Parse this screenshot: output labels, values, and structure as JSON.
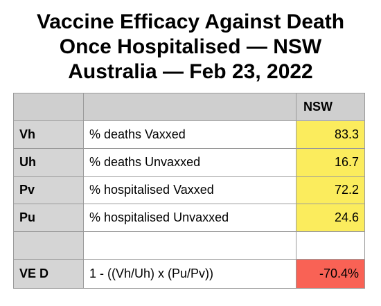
{
  "title_lines": [
    "Vaccine Efficacy Against Death",
    "Once Hospitalised — NSW",
    "Australia — Feb 23, 2022"
  ],
  "chart_data": {
    "type": "table",
    "title": "Vaccine Efficacy Against Death Once Hospitalised — NSW Australia — Feb 23, 2022",
    "column_headers": [
      "",
      "",
      "NSW"
    ],
    "rows": [
      {
        "symbol": "Vh",
        "label": "% deaths Vaxxed",
        "value": "83.3"
      },
      {
        "symbol": "Uh",
        "label": "% deaths Unvaxxed",
        "value": "16.7"
      },
      {
        "symbol": "Pv",
        "label": "% hospitalised Vaxxed",
        "value": "72.2"
      },
      {
        "symbol": "Pu",
        "label": "% hospitalised Unvaxxed",
        "value": "24.6"
      },
      {
        "symbol": "",
        "label": "",
        "value": ""
      },
      {
        "symbol": "VE D",
        "label": "1 - ((Vh/Uh) x (Pu/Pv))",
        "value": "-70.4%"
      }
    ],
    "value_highlight_color": "#fbec5d",
    "result_highlight_color": "#f96255"
  }
}
